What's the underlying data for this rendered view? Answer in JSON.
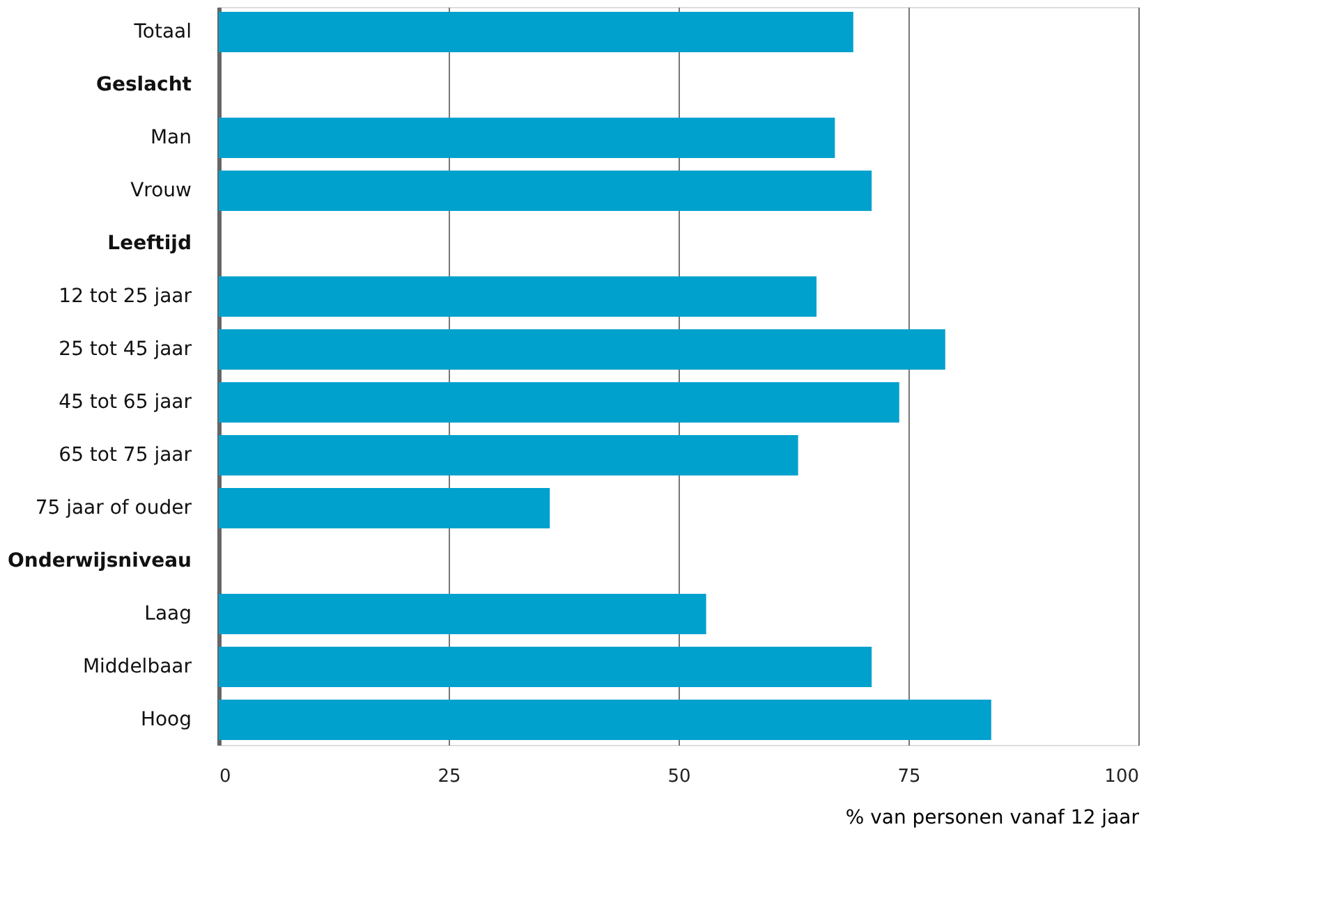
{
  "chart_data": {
    "type": "bar",
    "orientation": "horizontal",
    "xlabel": "% van personen vanaf 12 jaar",
    "categories": [
      "Totaal",
      "Geslacht",
      "Man",
      "Vrouw",
      "Leeftijd",
      "12 tot 25 jaar",
      "25 tot 45 jaar",
      "45 tot 65 jaar",
      "65 tot 75 jaar",
      "75 jaar of ouder",
      "Onderwijsniveau",
      "Laag",
      "Middelbaar",
      "Hoog"
    ],
    "values": [
      69,
      null,
      67,
      71,
      null,
      65,
      79,
      74,
      63,
      36,
      null,
      53,
      71,
      84
    ],
    "color": "#00a1cd",
    "xlim": [
      0,
      100
    ],
    "xticks": [
      0,
      25,
      50,
      75,
      100
    ],
    "grid": "x"
  }
}
